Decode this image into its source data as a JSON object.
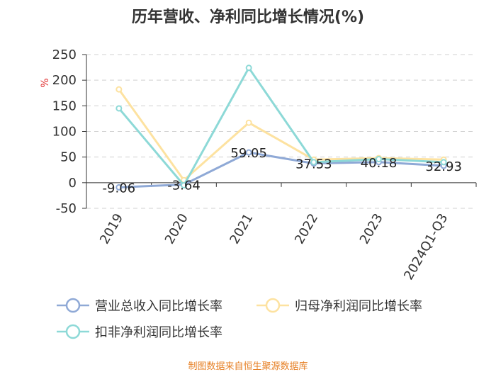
{
  "chart_data": {
    "type": "line",
    "title": "历年营收、净利同比增长情况(%)",
    "ylabel": "%",
    "categories": [
      "2019",
      "2020",
      "2021",
      "2022",
      "2023",
      "2024Q1-Q3"
    ],
    "ylim": [
      -50,
      250
    ],
    "yticks": [
      -50,
      0,
      50,
      100,
      150,
      200,
      250
    ],
    "grid": true,
    "legend_position": "bottom",
    "series": [
      {
        "name": "营业总收入同比增长率",
        "color": "#8fa9d6",
        "values": [
          -9.06,
          -3.64,
          59.05,
          37.53,
          40.18,
          32.93
        ],
        "labels": [
          "-9.06",
          "-3.64",
          "59.05",
          "37.53",
          "40.18",
          "32.93"
        ]
      },
      {
        "name": "归母净利润同比增长率",
        "color": "#fde2a0",
        "values": [
          182,
          5,
          117,
          45,
          48,
          45
        ]
      },
      {
        "name": "扣非净利润同比增长率",
        "color": "#8dd9d7",
        "values": [
          145,
          -5,
          224,
          40,
          46,
          40
        ]
      }
    ]
  },
  "footer": {
    "source": "制图数据来自恒生聚源数据库"
  }
}
